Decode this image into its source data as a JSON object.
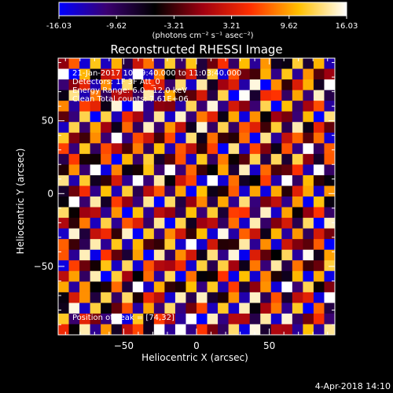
{
  "chart_data": {
    "type": "heatmap",
    "title": "Reconstructed RHESSI Image",
    "xlabel": "Heliocentric X (arcsec)",
    "ylabel": "Heliocentric Y (arcsec)",
    "xlim": [
      -95,
      95
    ],
    "ylim": [
      -97,
      93
    ],
    "x_ticks": [
      -50,
      0,
      50
    ],
    "y_ticks": [
      50,
      0,
      -50
    ],
    "colorbar": {
      "ticks": [
        "-16.03",
        "-9.62",
        "-3.21",
        "3.21",
        "9.62",
        "16.03"
      ],
      "min": -16.03,
      "max": 16.03,
      "unit": "(photons cm⁻² s⁻¹ asec⁻²)",
      "colors": [
        "#0000ff",
        "#3a0070",
        "#000000",
        "#a00010",
        "#ff3000",
        "#ffc000",
        "#ffffff"
      ]
    },
    "annotations": [
      "21-Jan-2017 10:59:40.000 to 11:03:40.000",
      "Detectors: 1F 3F  Att_0",
      "Energy Range: 6.0 - 12.0 keV",
      "Clean    Total counts: 7.61E+06"
    ],
    "peak_label": "Position of Peak = [74,32]",
    "peak": [
      74,
      32
    ],
    "pattern": {
      "grid": 26,
      "period_arcsec": 14,
      "angle_deg": -35,
      "amplitude": 16.03
    }
  },
  "footer": {
    "timestamp": "4-Apr-2018 14:10"
  }
}
